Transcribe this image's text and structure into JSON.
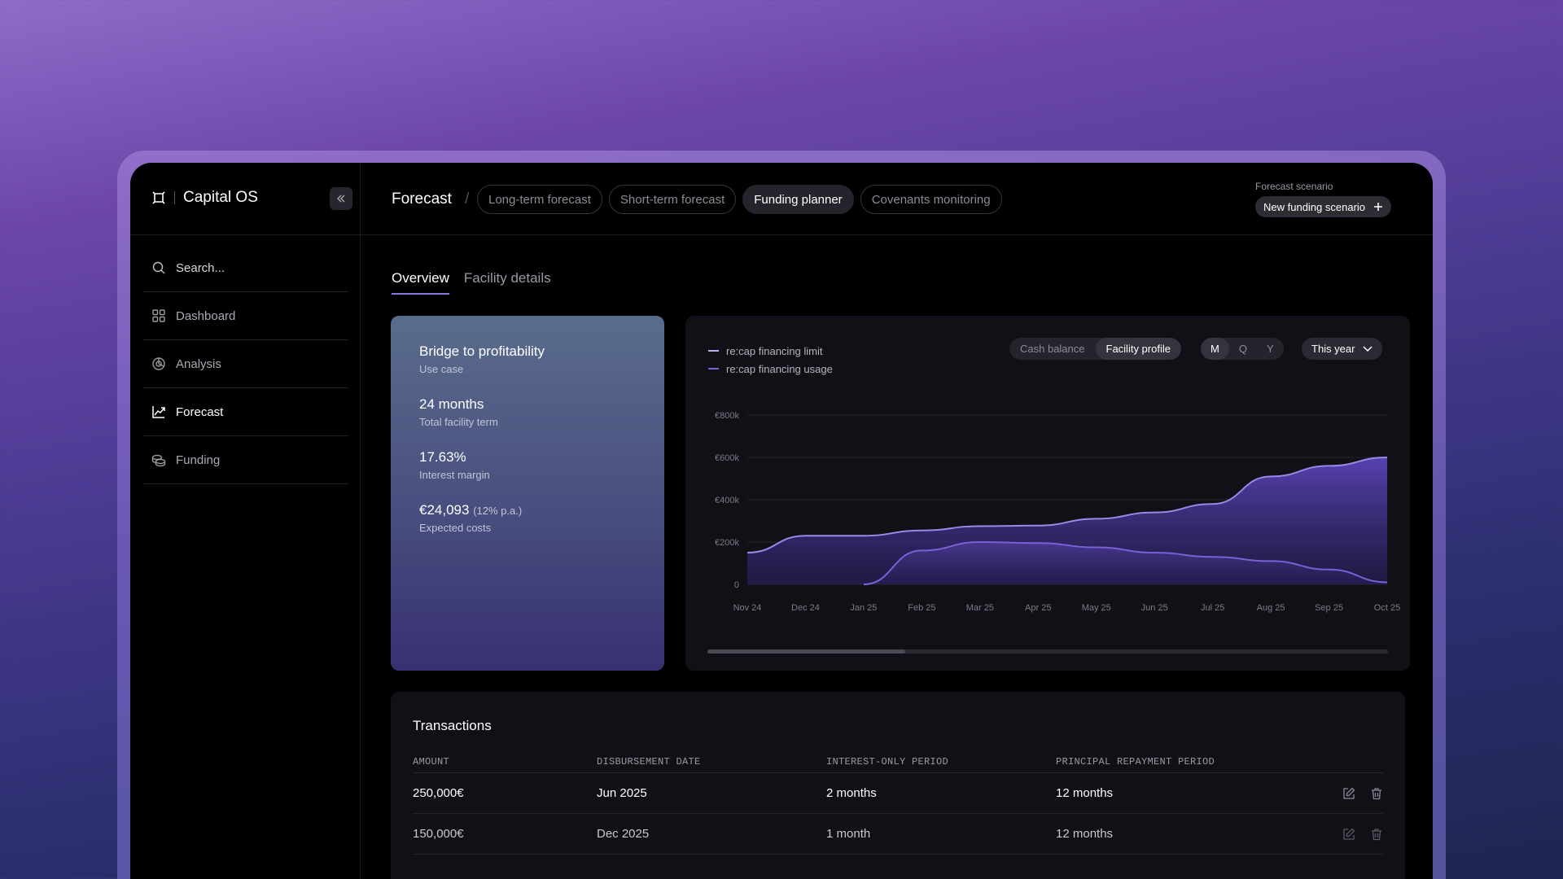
{
  "app": {
    "name": "Capital OS"
  },
  "sidebar": {
    "search_placeholder": "Search...",
    "items": [
      {
        "label": "Dashboard",
        "icon": "grid-icon"
      },
      {
        "label": "Analysis",
        "icon": "pie-chart-icon"
      },
      {
        "label": "Forecast",
        "icon": "trend-chart-icon",
        "active": true
      },
      {
        "label": "Funding",
        "icon": "coins-icon"
      }
    ]
  },
  "header": {
    "breadcrumb": "Forecast",
    "separator": "/",
    "tabs": [
      {
        "label": "Long-term forecast"
      },
      {
        "label": "Short-term forecast"
      },
      {
        "label": "Funding planner",
        "active": true
      },
      {
        "label": "Covenants monitoring"
      }
    ],
    "scenario_label": "Forecast scenario",
    "scenario_button": "New funding scenario"
  },
  "subtabs": [
    {
      "label": "Overview",
      "active": true
    },
    {
      "label": "Facility details"
    }
  ],
  "summary": {
    "use_case": {
      "value": "Bridge to profitability",
      "label": "Use case"
    },
    "term": {
      "value": "24 months",
      "label": "Total facility term"
    },
    "margin": {
      "value": "17.63%",
      "label": "Interest margin"
    },
    "costs": {
      "value": "€24,093",
      "note": "(12% p.a.)",
      "label": "Expected costs"
    }
  },
  "chart_controls": {
    "view_options": [
      "Cash balance",
      "Facility profile"
    ],
    "view_selected": "Facility profile",
    "period_options": [
      "M",
      "Q",
      "Y"
    ],
    "period_selected": "M",
    "range": "This year"
  },
  "chart_data": {
    "type": "area",
    "x": [
      "Nov 24",
      "Dec 24",
      "Jan 25",
      "Feb 25",
      "Mar 25",
      "Apr 25",
      "May 25",
      "Jun 25",
      "Jul 25",
      "Aug 25",
      "Sep 25",
      "Oct 25"
    ],
    "yticks": [
      "0",
      "€200k",
      "€400k",
      "€600k",
      "€800k"
    ],
    "ylim": [
      0,
      800
    ],
    "series": [
      {
        "name": "re:cap financing limit",
        "color": "#9a88e8",
        "values": [
          150,
          230,
          230,
          255,
          275,
          278,
          310,
          340,
          380,
          510,
          560,
          600
        ]
      },
      {
        "name": "re:cap financing usage",
        "color": "#7a5fd6",
        "values": [
          null,
          null,
          0,
          160,
          200,
          195,
          175,
          150,
          130,
          110,
          70,
          10
        ]
      }
    ],
    "grid": true
  },
  "transactions": {
    "title": "Transactions",
    "columns": [
      "AMOUNT",
      "DISBURSEMENT DATE",
      "INTEREST-ONLY PERIOD",
      "PRINCIPAL REPAYMENT PERIOD"
    ],
    "rows": [
      {
        "amount": "250,000€",
        "date": "Jun 2025",
        "interest_only": "2 months",
        "repayment": "12 months"
      },
      {
        "amount": "150,000€",
        "date": "Dec 2025",
        "interest_only": "1 month",
        "repayment": "12 months"
      }
    ]
  }
}
